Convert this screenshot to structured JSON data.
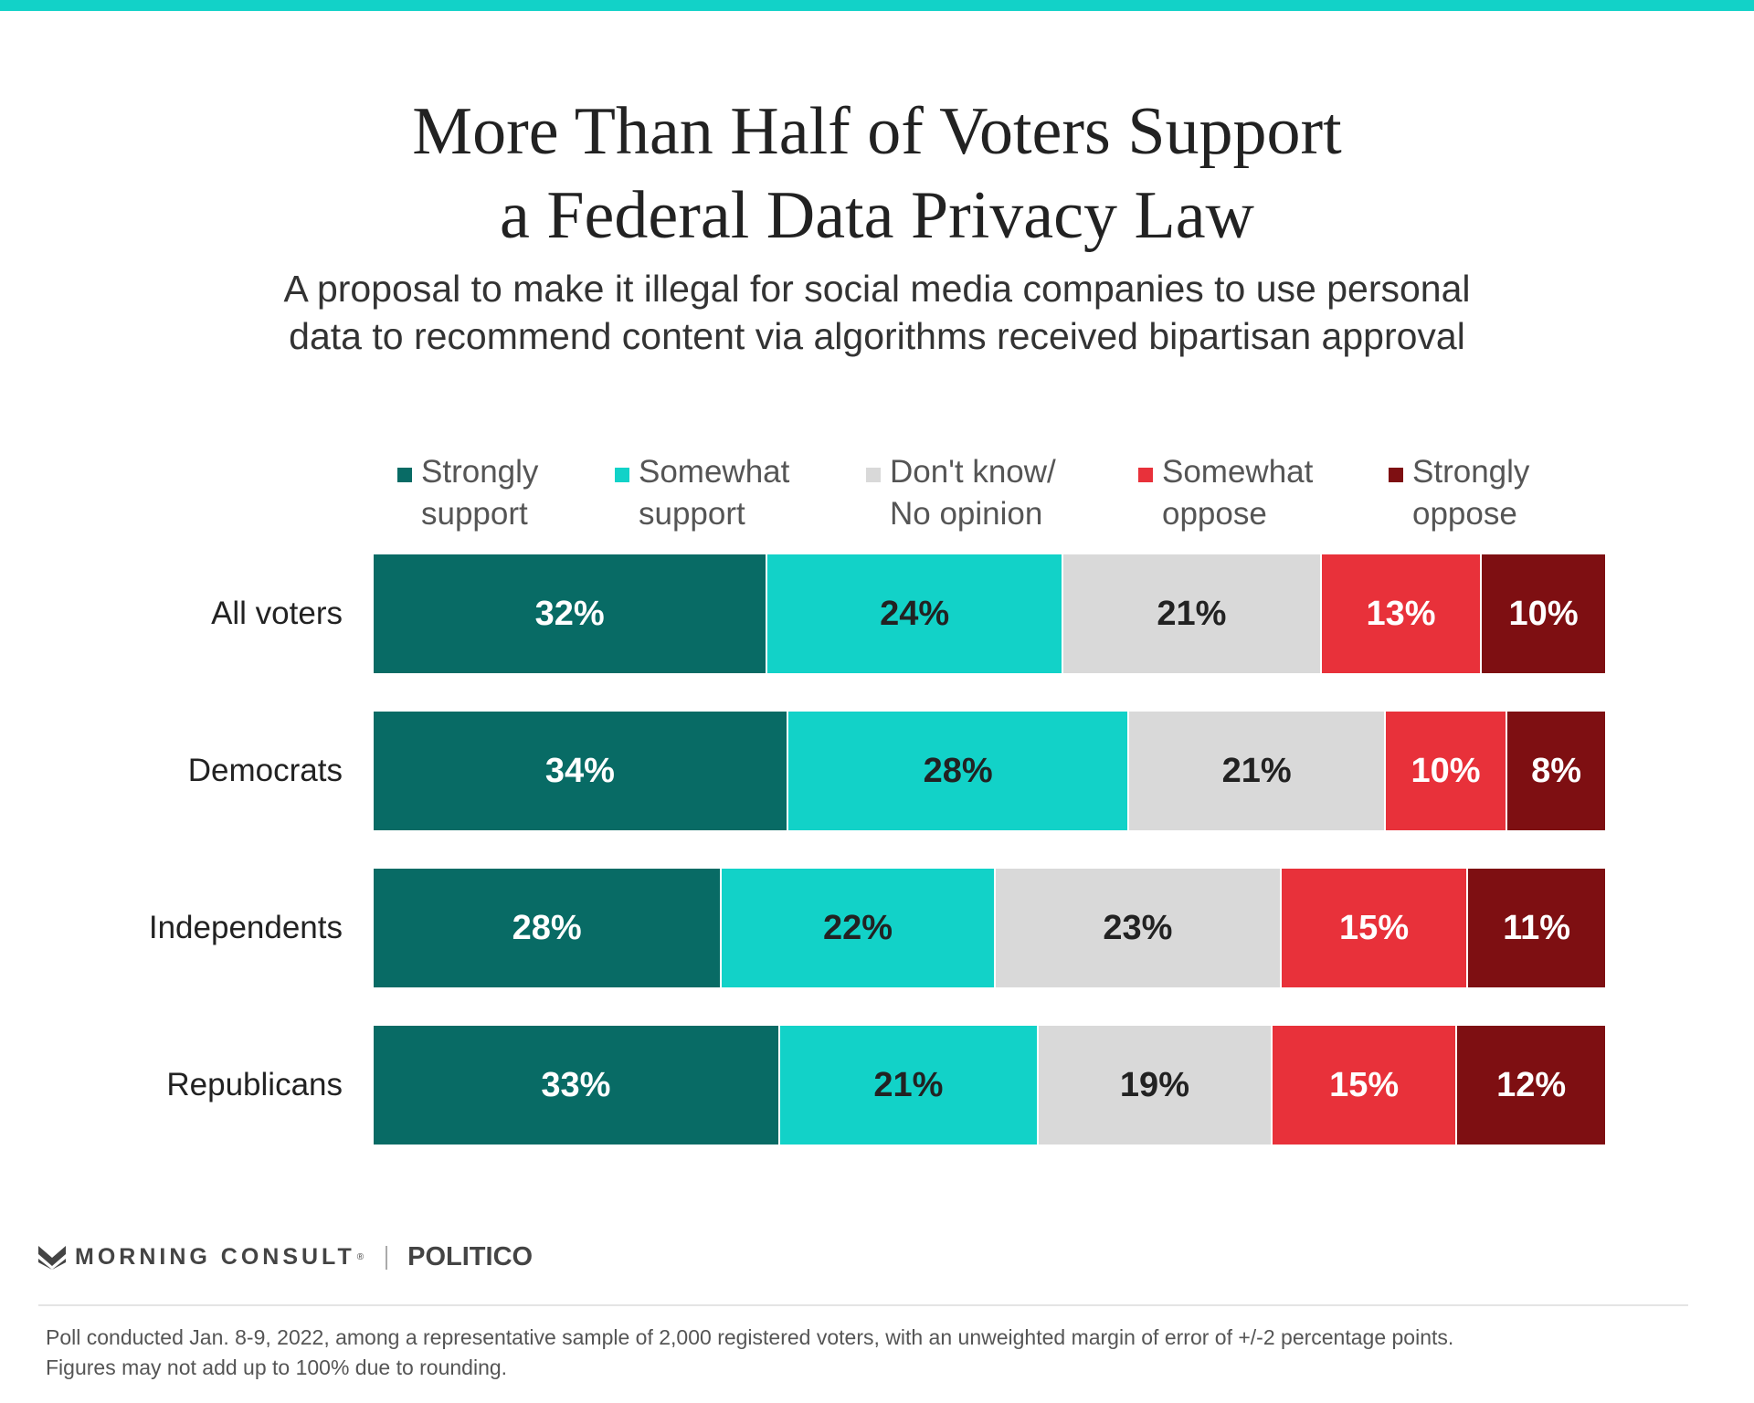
{
  "title": {
    "line1": "More Than Half of Voters Support",
    "line2": "a Federal Data Privacy Law"
  },
  "subtitle": {
    "line1": "A proposal to make it illegal for social media companies to use personal",
    "line2": "data to recommend content via algorithms received bipartisan approval"
  },
  "chart_data": {
    "type": "bar",
    "orientation": "horizontal",
    "stacked": true,
    "title": "More Than Half of Voters Support a Federal Data Privacy Law",
    "categories": [
      "All voters",
      "Democrats",
      "Independents",
      "Republicans"
    ],
    "series": [
      {
        "name": "Strongly support",
        "legend_lines": [
          "Strongly",
          "support"
        ],
        "color": "#086b65",
        "label_color": "#ffffff",
        "values": [
          32,
          34,
          28,
          33
        ]
      },
      {
        "name": "Somewhat support",
        "legend_lines": [
          "Somewhat",
          "support"
        ],
        "color": "#12d2c8",
        "label_color": "#222222",
        "values": [
          24,
          28,
          22,
          21
        ]
      },
      {
        "name": "Don't know/ No opinion",
        "legend_lines": [
          "Don't know/",
          "No opinion"
        ],
        "color": "#d9d9d9",
        "label_color": "#222222",
        "values": [
          21,
          21,
          23,
          19
        ]
      },
      {
        "name": "Somewhat oppose",
        "legend_lines": [
          "Somewhat",
          "oppose"
        ],
        "color": "#e8313a",
        "label_color": "#ffffff",
        "values": [
          13,
          10,
          15,
          15
        ]
      },
      {
        "name": "Strongly oppose",
        "legend_lines": [
          "Strongly",
          "oppose"
        ],
        "color": "#7e0f12",
        "label_color": "#ffffff",
        "values": [
          10,
          8,
          11,
          12
        ]
      }
    ],
    "value_suffix": "%",
    "xlabel": "",
    "ylabel": "",
    "legend_position": "top"
  },
  "footer": {
    "brand1": "MORNING CONSULT",
    "brand2": "POLITICO",
    "note_line1": "Poll conducted Jan. 8-9, 2022, among a representative sample of 2,000 registered voters, with an unweighted margin of error of +/-2 percentage points.",
    "note_line2": "Figures may not add up to 100% due to rounding."
  }
}
